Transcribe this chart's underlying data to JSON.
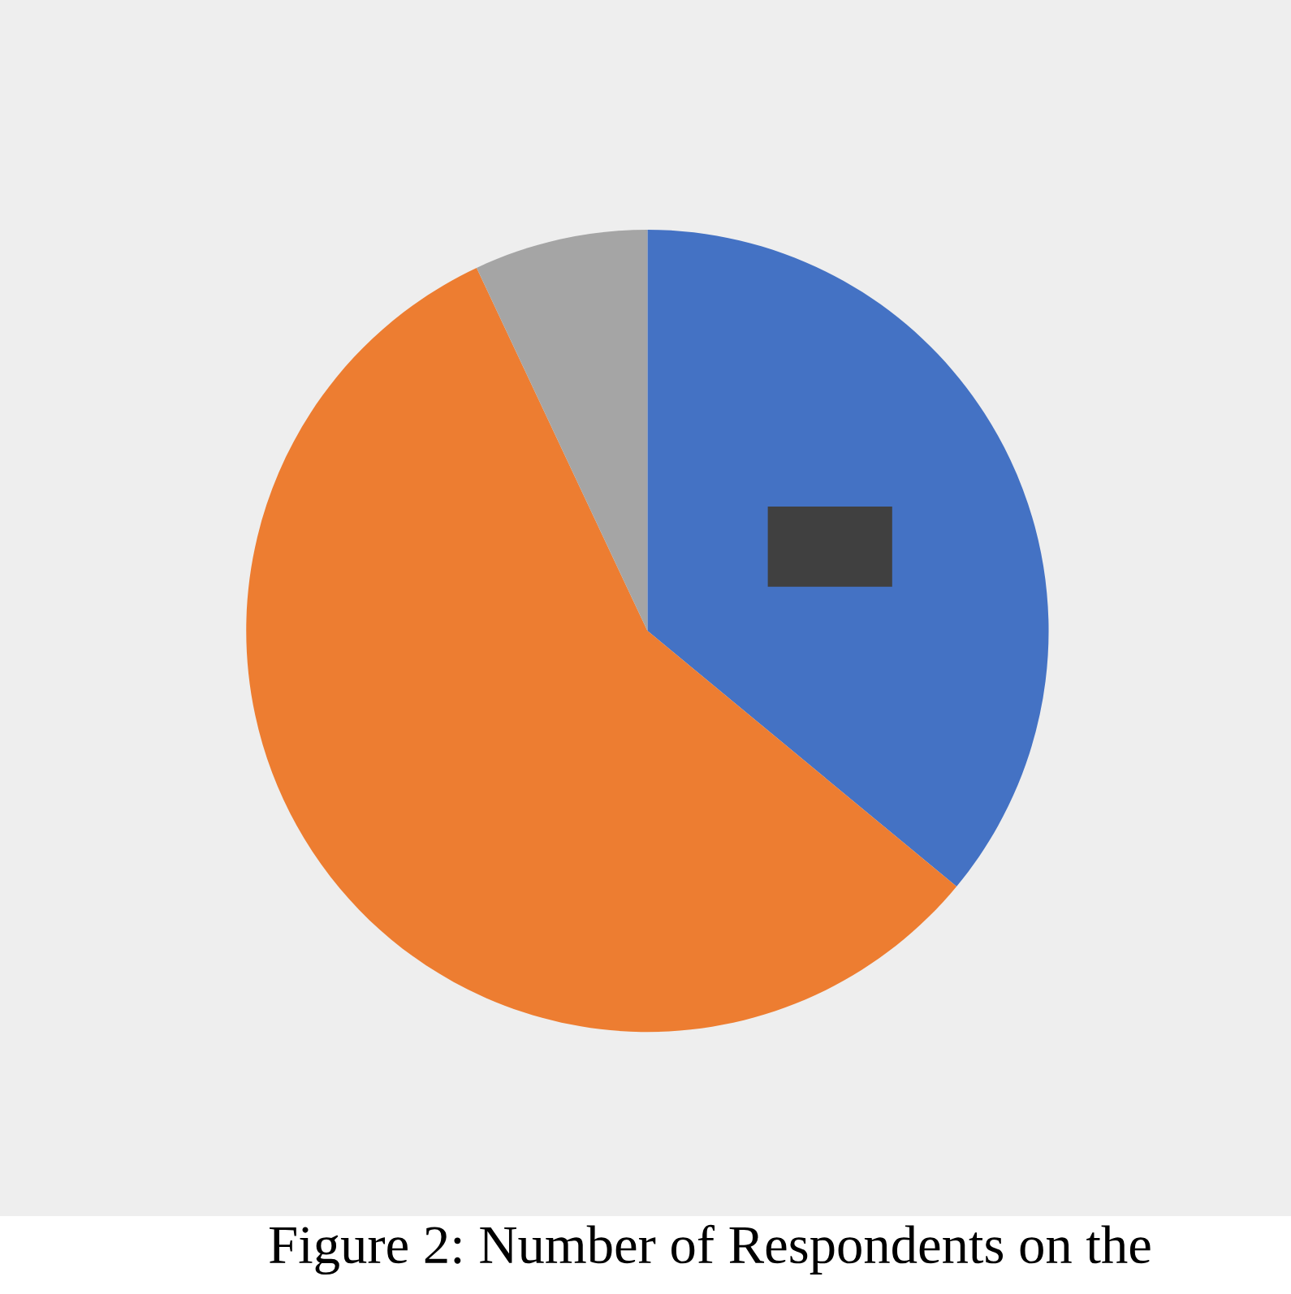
{
  "chart_data": {
    "type": "pie",
    "categories": [
      null,
      null,
      null
    ],
    "values": [
      36,
      57,
      7
    ],
    "colors": [
      "#4472c4",
      "#ed7d31",
      "#a5a5a5"
    ],
    "annotations": [
      "Figure 2: Number of Respondents on the"
    ]
  }
}
